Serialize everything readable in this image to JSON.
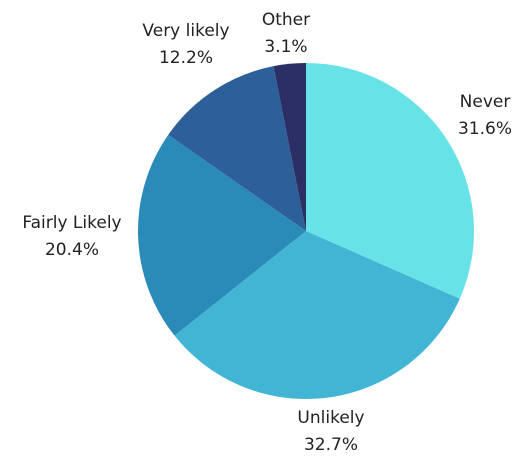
{
  "chart_data": {
    "type": "pie",
    "categories": [
      "Never",
      "Unlikely",
      "Fairly Likely",
      "Very likely",
      "Other"
    ],
    "values": [
      31.6,
      32.7,
      20.4,
      12.2,
      3.1
    ],
    "value_labels": [
      "31.6%",
      "32.7%",
      "20.4%",
      "12.2%",
      "3.1%"
    ],
    "colors": [
      "#67e3e8",
      "#42b5d4",
      "#2a8ab8",
      "#2d5f98",
      "#2b2f66"
    ]
  }
}
